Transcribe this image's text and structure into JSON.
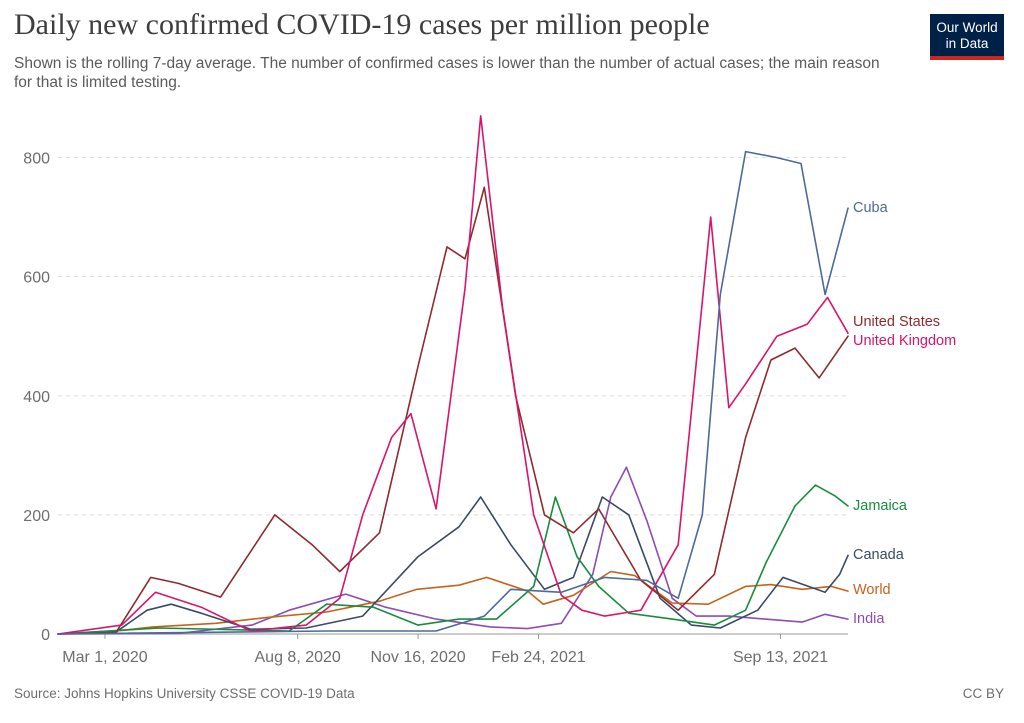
{
  "header": {
    "title": "Daily new confirmed COVID-19 cases per million people",
    "subtitle": "Shown is the rolling 7-day average. The number of confirmed cases is lower than the number of actual cases; the main reason for that is limited testing.",
    "logo": "Our World in Data"
  },
  "footer": {
    "source": "Source: Johns Hopkins University CSSE COVID-19 Data",
    "license": "CC BY"
  },
  "colors": {
    "logo_bg": "#002147",
    "logo_bar": "#ce261e"
  },
  "chart_data": {
    "type": "line",
    "title": "Daily new confirmed COVID-19 cases per million people",
    "x_range": [
      "2020-01-22",
      "2021-11-08"
    ],
    "ylim": [
      0,
      900
    ],
    "y_ticks": [
      0,
      200,
      400,
      600,
      800
    ],
    "x_ticks": [
      {
        "date": "2020-03-01",
        "label": "Mar 1, 2020"
      },
      {
        "date": "2020-08-08",
        "label": "Aug 8, 2020"
      },
      {
        "date": "2020-11-16",
        "label": "Nov 16, 2020"
      },
      {
        "date": "2021-02-24",
        "label": "Feb 24, 2021"
      },
      {
        "date": "2021-09-13",
        "label": "Sep 13, 2021"
      }
    ],
    "grid": "horizontal dashed",
    "legend": "labels at line ends (right)",
    "series": [
      {
        "name": "India",
        "color": "#8c4db5",
        "points": [
          [
            "2020-01-22",
            0
          ],
          [
            "2020-05-01",
            1
          ],
          [
            "2020-07-01",
            15
          ],
          [
            "2020-08-01",
            40
          ],
          [
            "2020-09-17",
            67
          ],
          [
            "2020-10-20",
            45
          ],
          [
            "2020-12-01",
            25
          ],
          [
            "2021-01-15",
            12
          ],
          [
            "2021-02-15",
            9
          ],
          [
            "2021-03-15",
            18
          ],
          [
            "2021-04-10",
            100
          ],
          [
            "2021-04-25",
            230
          ],
          [
            "2021-05-08",
            280
          ],
          [
            "2021-05-25",
            190
          ],
          [
            "2021-06-15",
            60
          ],
          [
            "2021-07-05",
            30
          ],
          [
            "2021-08-01",
            30
          ],
          [
            "2021-10-01",
            20
          ],
          [
            "2021-10-20",
            33
          ],
          [
            "2021-11-08",
            25
          ]
        ]
      },
      {
        "name": "World",
        "color": "#c5631b",
        "points": [
          [
            "2020-01-22",
            0
          ],
          [
            "2020-03-15",
            6
          ],
          [
            "2020-04-10",
            12
          ],
          [
            "2020-06-01",
            18
          ],
          [
            "2020-07-15",
            28
          ],
          [
            "2020-09-01",
            37
          ],
          [
            "2020-10-15",
            55
          ],
          [
            "2020-11-15",
            75
          ],
          [
            "2020-12-20",
            82
          ],
          [
            "2021-01-12",
            95
          ],
          [
            "2021-02-15",
            72
          ],
          [
            "2021-02-28",
            50
          ],
          [
            "2021-03-25",
            65
          ],
          [
            "2021-04-25",
            105
          ],
          [
            "2021-05-15",
            98
          ],
          [
            "2021-06-15",
            52
          ],
          [
            "2021-07-15",
            50
          ],
          [
            "2021-08-15",
            80
          ],
          [
            "2021-09-05",
            83
          ],
          [
            "2021-10-01",
            75
          ],
          [
            "2021-10-25",
            80
          ],
          [
            "2021-11-08",
            72
          ]
        ]
      },
      {
        "name": "Canada",
        "color": "#3b4a66",
        "points": [
          [
            "2020-01-22",
            0
          ],
          [
            "2020-03-10",
            3
          ],
          [
            "2020-04-05",
            40
          ],
          [
            "2020-04-25",
            50
          ],
          [
            "2020-05-20",
            35
          ],
          [
            "2020-06-30",
            8
          ],
          [
            "2020-08-15",
            10
          ],
          [
            "2020-10-01",
            30
          ],
          [
            "2020-11-16",
            130
          ],
          [
            "2020-12-20",
            180
          ],
          [
            "2021-01-07",
            230
          ],
          [
            "2021-02-01",
            150
          ],
          [
            "2021-03-01",
            75
          ],
          [
            "2021-03-25",
            95
          ],
          [
            "2021-04-18",
            230
          ],
          [
            "2021-05-10",
            200
          ],
          [
            "2021-06-05",
            60
          ],
          [
            "2021-07-01",
            15
          ],
          [
            "2021-07-25",
            10
          ],
          [
            "2021-08-25",
            40
          ],
          [
            "2021-09-15",
            95
          ],
          [
            "2021-10-20",
            70
          ],
          [
            "2021-11-01",
            100
          ],
          [
            "2021-11-08",
            132
          ]
        ]
      },
      {
        "name": "Jamaica",
        "color": "#178e3e",
        "points": [
          [
            "2020-01-22",
            0
          ],
          [
            "2020-04-15",
            10
          ],
          [
            "2020-08-01",
            5
          ],
          [
            "2020-09-01",
            50
          ],
          [
            "2020-10-10",
            45
          ],
          [
            "2020-11-16",
            15
          ],
          [
            "2020-12-20",
            25
          ],
          [
            "2021-01-20",
            25
          ],
          [
            "2021-02-20",
            80
          ],
          [
            "2021-03-10",
            230
          ],
          [
            "2021-03-28",
            130
          ],
          [
            "2021-04-15",
            80
          ],
          [
            "2021-05-10",
            35
          ],
          [
            "2021-06-15",
            25
          ],
          [
            "2021-07-20",
            15
          ],
          [
            "2021-08-15",
            40
          ],
          [
            "2021-09-01",
            120
          ],
          [
            "2021-09-25",
            215
          ],
          [
            "2021-10-12",
            250
          ],
          [
            "2021-10-28",
            232
          ],
          [
            "2021-11-08",
            215
          ]
        ]
      },
      {
        "name": "United States",
        "color": "#8f2b2f",
        "points": [
          [
            "2020-01-22",
            0
          ],
          [
            "2020-03-10",
            2
          ],
          [
            "2020-04-08",
            95
          ],
          [
            "2020-05-01",
            85
          ],
          [
            "2020-06-05",
            62
          ],
          [
            "2020-07-20",
            200
          ],
          [
            "2020-08-20",
            150
          ],
          [
            "2020-09-12",
            105
          ],
          [
            "2020-10-15",
            170
          ],
          [
            "2020-11-16",
            450
          ],
          [
            "2020-12-10",
            650
          ],
          [
            "2020-12-25",
            630
          ],
          [
            "2021-01-10",
            750
          ],
          [
            "2021-02-05",
            400
          ],
          [
            "2021-03-01",
            200
          ],
          [
            "2021-03-25",
            170
          ],
          [
            "2021-04-15",
            210
          ],
          [
            "2021-05-20",
            90
          ],
          [
            "2021-06-20",
            40
          ],
          [
            "2021-07-20",
            100
          ],
          [
            "2021-08-15",
            330
          ],
          [
            "2021-09-05",
            460
          ],
          [
            "2021-09-25",
            480
          ],
          [
            "2021-10-15",
            430
          ],
          [
            "2021-11-08",
            500
          ]
        ]
      },
      {
        "name": "United Kingdom",
        "color": "#d9146b",
        "points": [
          [
            "2020-01-22",
            0
          ],
          [
            "2020-03-15",
            15
          ],
          [
            "2020-04-12",
            70
          ],
          [
            "2020-05-20",
            45
          ],
          [
            "2020-06-30",
            5
          ],
          [
            "2020-08-15",
            15
          ],
          [
            "2020-09-12",
            60
          ],
          [
            "2020-10-01",
            200
          ],
          [
            "2020-10-25",
            330
          ],
          [
            "2020-11-10",
            370
          ],
          [
            "2020-12-01",
            210
          ],
          [
            "2020-12-25",
            580
          ],
          [
            "2021-01-07",
            870
          ],
          [
            "2021-01-25",
            550
          ],
          [
            "2021-02-20",
            200
          ],
          [
            "2021-03-15",
            65
          ],
          [
            "2021-04-01",
            40
          ],
          [
            "2021-04-20",
            30
          ],
          [
            "2021-05-20",
            40
          ],
          [
            "2021-06-20",
            150
          ],
          [
            "2021-07-17",
            700
          ],
          [
            "2021-08-01",
            380
          ],
          [
            "2021-08-15",
            420
          ],
          [
            "2021-09-10",
            500
          ],
          [
            "2021-10-05",
            520
          ],
          [
            "2021-10-22",
            565
          ],
          [
            "2021-11-08",
            505
          ]
        ]
      },
      {
        "name": "Cuba",
        "color": "#4c6a9c",
        "points": [
          [
            "2020-01-22",
            0
          ],
          [
            "2020-09-01",
            5
          ],
          [
            "2020-12-01",
            5
          ],
          [
            "2021-01-10",
            30
          ],
          [
            "2021-02-01",
            75
          ],
          [
            "2021-03-15",
            70
          ],
          [
            "2021-04-20",
            95
          ],
          [
            "2021-05-25",
            90
          ],
          [
            "2021-06-20",
            60
          ],
          [
            "2021-07-10",
            200
          ],
          [
            "2021-07-25",
            570
          ],
          [
            "2021-08-15",
            810
          ],
          [
            "2021-09-10",
            800
          ],
          [
            "2021-09-30",
            790
          ],
          [
            "2021-10-20",
            570
          ],
          [
            "2021-11-08",
            715
          ]
        ]
      }
    ]
  }
}
